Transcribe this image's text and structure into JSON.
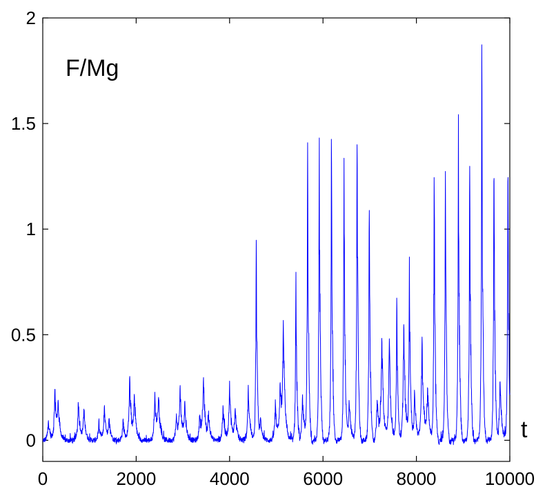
{
  "chart_data": {
    "type": "line",
    "title": "",
    "ylabel_annotation": "F/Mg",
    "xlabel_annotation": "t",
    "xlim": [
      0,
      10000
    ],
    "ylim": [
      -0.1,
      2
    ],
    "xticks": [
      0,
      2000,
      4000,
      6000,
      8000,
      10000
    ],
    "xtick_labels": [
      "0",
      "2000",
      "4000",
      "6000",
      "8000",
      "10000"
    ],
    "yticks": [
      0,
      0.5,
      1,
      1.5,
      2
    ],
    "ytick_labels": [
      "0",
      "0.5",
      "1",
      "1.5",
      "2"
    ],
    "grid": false,
    "line_color": "#0000ff",
    "baseline_noise": 0.012,
    "peaks": [
      {
        "t": 120,
        "h": 0.1
      },
      {
        "t": 260,
        "h": 0.25
      },
      {
        "t": 330,
        "h": 0.17
      },
      {
        "t": 760,
        "h": 0.19
      },
      {
        "t": 880,
        "h": 0.15
      },
      {
        "t": 1200,
        "h": 0.08
      },
      {
        "t": 1320,
        "h": 0.17
      },
      {
        "t": 1420,
        "h": 0.1
      },
      {
        "t": 1720,
        "h": 0.1
      },
      {
        "t": 1860,
        "h": 0.31
      },
      {
        "t": 1960,
        "h": 0.22
      },
      {
        "t": 2400,
        "h": 0.22
      },
      {
        "t": 2480,
        "h": 0.2
      },
      {
        "t": 2860,
        "h": 0.12
      },
      {
        "t": 2940,
        "h": 0.26
      },
      {
        "t": 3040,
        "h": 0.18
      },
      {
        "t": 3360,
        "h": 0.12
      },
      {
        "t": 3440,
        "h": 0.3
      },
      {
        "t": 3550,
        "h": 0.12
      },
      {
        "t": 3860,
        "h": 0.17
      },
      {
        "t": 4000,
        "h": 0.27
      },
      {
        "t": 4120,
        "h": 0.15
      },
      {
        "t": 4400,
        "h": 0.27
      },
      {
        "t": 4570,
        "h": 0.99
      },
      {
        "t": 4660,
        "h": 0.12
      },
      {
        "t": 4980,
        "h": 0.17
      },
      {
        "t": 5080,
        "h": 0.26
      },
      {
        "t": 5150,
        "h": 0.54
      },
      {
        "t": 5420,
        "h": 0.83
      },
      {
        "t": 5560,
        "h": 0.22
      },
      {
        "t": 5670,
        "h": 1.45
      },
      {
        "t": 5920,
        "h": 1.48
      },
      {
        "t": 6180,
        "h": 1.53
      },
      {
        "t": 6450,
        "h": 1.34
      },
      {
        "t": 6560,
        "h": 0.2
      },
      {
        "t": 6730,
        "h": 1.5
      },
      {
        "t": 6990,
        "h": 1.18
      },
      {
        "t": 7160,
        "h": 0.2
      },
      {
        "t": 7260,
        "h": 0.5
      },
      {
        "t": 7420,
        "h": 0.48
      },
      {
        "t": 7580,
        "h": 0.72
      },
      {
        "t": 7730,
        "h": 0.58
      },
      {
        "t": 7850,
        "h": 0.86
      },
      {
        "t": 7960,
        "h": 0.25
      },
      {
        "t": 8120,
        "h": 0.5
      },
      {
        "t": 8240,
        "h": 0.25
      },
      {
        "t": 8380,
        "h": 1.32
      },
      {
        "t": 8620,
        "h": 1.33
      },
      {
        "t": 8900,
        "h": 1.55
      },
      {
        "t": 9140,
        "h": 1.39
      },
      {
        "t": 9400,
        "h": 1.87
      },
      {
        "t": 9660,
        "h": 1.38
      },
      {
        "t": 9790,
        "h": 0.3
      },
      {
        "t": 9960,
        "h": 1.39
      }
    ]
  }
}
